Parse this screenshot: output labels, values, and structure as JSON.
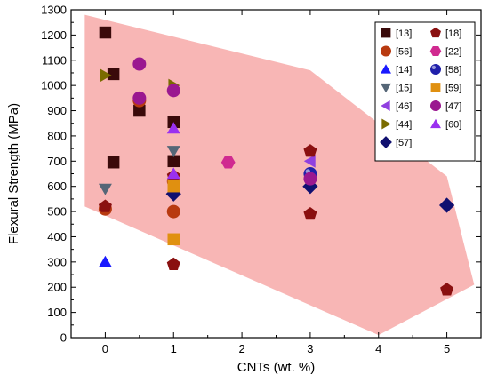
{
  "chart_data": {
    "type": "scatter",
    "title": "",
    "xlabel": "CNTs (wt. %)",
    "ylabel": "Flexural Strength (MPa)",
    "xlim": [
      -0.5,
      5.5
    ],
    "ylim": [
      0,
      1300
    ],
    "xticks": [
      0,
      1,
      2,
      3,
      4,
      5
    ],
    "yticks": [
      0,
      100,
      200,
      300,
      400,
      500,
      600,
      700,
      800,
      900,
      1000,
      1100,
      1200,
      1300
    ],
    "grid": false,
    "legend_position": "top-right",
    "region": {
      "color": "#f7a9a8",
      "points": [
        [
          -0.3,
          1280
        ],
        [
          3.0,
          1060
        ],
        [
          5.0,
          640
        ],
        [
          5.4,
          210
        ],
        [
          4.0,
          10
        ],
        [
          -0.3,
          520
        ]
      ]
    },
    "series": [
      {
        "name": "[13]",
        "marker": "square",
        "color": "#3a0a0a",
        "points": [
          [
            0,
            1210
          ],
          [
            0.12,
            1045
          ],
          [
            0.12,
            695
          ],
          [
            0.5,
            900
          ],
          [
            1,
            855
          ],
          [
            1,
            700
          ]
        ]
      },
      {
        "name": "[56]",
        "marker": "circle",
        "color": "#b83a10",
        "points": [
          [
            0,
            510
          ],
          [
            1,
            500
          ],
          [
            0.5,
            940
          ],
          [
            1,
            620
          ]
        ]
      },
      {
        "name": "[14]",
        "marker": "triangle-up",
        "color": "#1a1aff",
        "points": [
          [
            0,
            300
          ]
        ]
      },
      {
        "name": "[15]",
        "marker": "triangle-down",
        "color": "#556677",
        "points": [
          [
            0,
            590
          ],
          [
            1,
            740
          ]
        ]
      },
      {
        "name": "[46]",
        "marker": "triangle-left",
        "color": "#9040e0",
        "points": [
          [
            3,
            700
          ]
        ]
      },
      {
        "name": "[44]",
        "marker": "triangle-right",
        "color": "#7a6b00",
        "points": [
          [
            0,
            1040
          ],
          [
            1,
            1000
          ]
        ]
      },
      {
        "name": "[57]",
        "marker": "diamond",
        "color": "#101070",
        "points": [
          [
            1,
            570
          ],
          [
            3,
            600
          ],
          [
            5,
            525
          ]
        ]
      },
      {
        "name": "[18]",
        "marker": "pentagon",
        "color": "#8a1010",
        "points": [
          [
            0,
            520
          ],
          [
            1,
            290
          ],
          [
            1,
            640
          ],
          [
            3,
            490
          ],
          [
            3,
            740
          ],
          [
            5,
            190
          ]
        ]
      },
      {
        "name": "[22]",
        "marker": "hexagon",
        "color": "#d02a90",
        "points": [
          [
            1.8,
            695
          ]
        ]
      },
      {
        "name": "[58]",
        "marker": "sphere",
        "color": "#2020aa",
        "points": [
          [
            3,
            650
          ]
        ]
      },
      {
        "name": "[59]",
        "marker": "square",
        "color": "#e09010",
        "points": [
          [
            1,
            600
          ],
          [
            1,
            390
          ]
        ]
      },
      {
        "name": "[47]",
        "marker": "circle",
        "color": "#9a1890",
        "points": [
          [
            0.5,
            1085
          ],
          [
            0.5,
            950
          ],
          [
            1,
            980
          ],
          [
            3,
            630
          ]
        ]
      },
      {
        "name": "[60]",
        "marker": "triangle-up",
        "color": "#9a30f0",
        "points": [
          [
            1,
            830
          ],
          [
            1,
            650
          ]
        ]
      }
    ]
  }
}
